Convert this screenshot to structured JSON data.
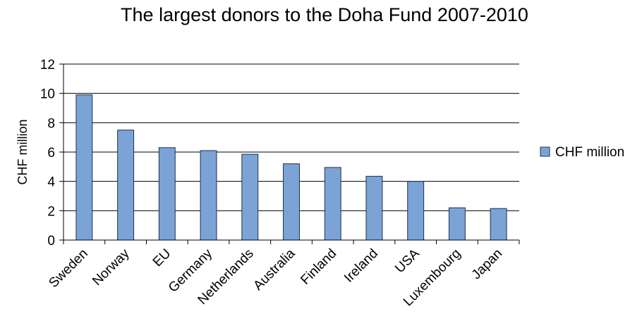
{
  "chart_data": {
    "type": "bar",
    "title": "The largest donors to the Doha Fund 2007-2010",
    "xlabel": "",
    "ylabel": "CHF million",
    "categories": [
      "Sweden",
      "Norway",
      "EU",
      "Germany",
      "Netherlands",
      "Australia",
      "Finland",
      "Ireland",
      "USA",
      "Luxembourg",
      "Japan"
    ],
    "series": [
      {
        "name": "CHF million",
        "values": [
          9.9,
          7.5,
          6.3,
          6.1,
          5.85,
          5.2,
          4.95,
          4.35,
          4.0,
          2.2,
          2.15
        ]
      }
    ],
    "ylim": [
      0,
      12
    ],
    "yticks": [
      0,
      2,
      4,
      6,
      8,
      10,
      12
    ],
    "grid": true,
    "legend_position": "right",
    "colors": {
      "bar_fill": "#7ba3d6",
      "bar_stroke": "#1f2f4f"
    }
  }
}
